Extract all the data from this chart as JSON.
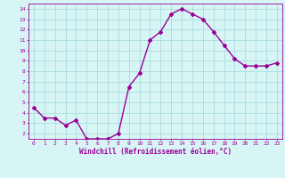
{
  "x": [
    0,
    1,
    2,
    3,
    4,
    5,
    6,
    7,
    8,
    9,
    10,
    11,
    12,
    13,
    14,
    15,
    16,
    17,
    18,
    19,
    20,
    21,
    22,
    23
  ],
  "y": [
    4.5,
    3.5,
    3.5,
    2.8,
    3.3,
    1.5,
    1.5,
    1.5,
    2.0,
    6.5,
    7.8,
    11.0,
    11.8,
    13.5,
    14.0,
    13.5,
    13.0,
    11.8,
    10.5,
    9.2,
    8.5,
    8.5,
    8.5,
    8.8
  ],
  "line_color": "#990099",
  "marker": "D",
  "marker_size": 2,
  "bg_color": "#d8f5f5",
  "grid_color": "#aadddd",
  "xlabel": "Windchill (Refroidissement éolien,°C)",
  "xlabel_color": "#990099",
  "tick_color": "#990099",
  "xlim": [
    -0.5,
    23.5
  ],
  "ylim": [
    1.5,
    14.5
  ],
  "yticks": [
    2,
    3,
    4,
    5,
    6,
    7,
    8,
    9,
    10,
    11,
    12,
    13,
    14
  ],
  "xticks": [
    0,
    1,
    2,
    3,
    4,
    5,
    6,
    7,
    8,
    9,
    10,
    11,
    12,
    13,
    14,
    15,
    16,
    17,
    18,
    19,
    20,
    21,
    22,
    23
  ]
}
